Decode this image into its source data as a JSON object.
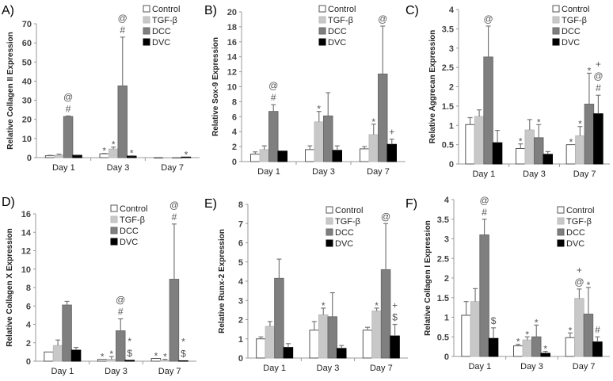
{
  "legend": [
    {
      "name": "Control",
      "color": "#ffffff"
    },
    {
      "name": "TGF-β",
      "color": "#c8c8c8"
    },
    {
      "name": "DCC",
      "color": "#7f7f7f"
    },
    {
      "name": "DVC",
      "color": "#000000"
    }
  ],
  "chart_data": [
    {
      "type": "bar",
      "panel": "A)",
      "ylabel": "Relative Collagen II Expression",
      "ylim": [
        0,
        70
      ],
      "yticks": [
        0,
        10,
        20,
        30,
        40,
        50,
        60,
        70
      ],
      "categories": [
        "Day 1",
        "Day 3",
        "Day 7"
      ],
      "series": [
        {
          "name": "Control",
          "values": [
            1,
            2,
            0
          ],
          "err_top": [
            1.2,
            2.2,
            0
          ],
          "annotations": [
            [],
            [
              "*"
            ],
            []
          ]
        },
        {
          "name": "TGF-β",
          "values": [
            1.3,
            4.5,
            0
          ],
          "err_top": [
            1.8,
            5.5,
            0
          ],
          "annotations": [
            [],
            [
              "*"
            ],
            []
          ]
        },
        {
          "name": "DCC",
          "values": [
            21.5,
            37.5,
            0
          ],
          "err_top": [
            21.8,
            63,
            0
          ],
          "annotations": [
            [
              "@",
              "#"
            ],
            [
              "@",
              "#"
            ],
            []
          ]
        },
        {
          "name": "DVC",
          "values": [
            1.2,
            0.8,
            0.3
          ],
          "err_top": [
            1.4,
            1.0,
            0.3
          ],
          "annotations": [
            [],
            [
              "*"
            ],
            [
              "*"
            ]
          ]
        }
      ]
    },
    {
      "type": "bar",
      "panel": "B)",
      "ylabel": "Relative Sox-9 Expression",
      "ylim": [
        0,
        20
      ],
      "yticks": [
        0,
        2,
        4,
        6,
        8,
        10,
        12,
        14,
        16,
        18,
        20
      ],
      "categories": [
        "Day 1",
        "Day 3",
        "Day 7"
      ],
      "series": [
        {
          "name": "Control",
          "values": [
            1.0,
            1.6,
            1.7
          ],
          "err_top": [
            1.3,
            2.1,
            2.0
          ],
          "annotations": [
            [],
            [],
            []
          ]
        },
        {
          "name": "TGF-β",
          "values": [
            1.6,
            5.3,
            3.6
          ],
          "err_top": [
            2.1,
            6.7,
            5.0
          ],
          "annotations": [
            [],
            [
              "*"
            ],
            [
              "*"
            ]
          ]
        },
        {
          "name": "DCC",
          "values": [
            6.7,
            6.1,
            11.7
          ],
          "err_top": [
            7.6,
            9.2,
            18.1
          ],
          "annotations": [
            [
              "@",
              "#"
            ],
            [],
            [
              "@"
            ]
          ]
        },
        {
          "name": "DVC",
          "values": [
            1.4,
            1.5,
            2.3
          ],
          "err_top": [
            1.4,
            2.1,
            3.0
          ],
          "annotations": [
            [],
            [],
            [
              "+"
            ]
          ]
        }
      ]
    },
    {
      "type": "bar",
      "panel": "C)",
      "ylabel": "Relative Aggrecan Expression",
      "ylim": [
        0,
        4
      ],
      "yticks": [
        0,
        0.5,
        1,
        1.5,
        2,
        2.5,
        3,
        3.5,
        4
      ],
      "categories": [
        "Day 1",
        "Day 3",
        "Day 7"
      ],
      "series": [
        {
          "name": "Control",
          "values": [
            1.02,
            0.4,
            0.5
          ],
          "err_top": [
            1.2,
            0.52,
            0.5
          ],
          "annotations": [
            [],
            [
              "*"
            ],
            [
              "*"
            ]
          ]
        },
        {
          "name": "TGF-β",
          "values": [
            1.23,
            0.88,
            0.73
          ],
          "err_top": [
            1.4,
            1.15,
            0.97
          ],
          "annotations": [
            [],
            [],
            [
              "*"
            ]
          ]
        },
        {
          "name": "DCC",
          "values": [
            2.77,
            0.68,
            1.55
          ],
          "err_top": [
            3.57,
            1.02,
            2.35
          ],
          "annotations": [
            [
              "@"
            ],
            [
              "*"
            ],
            [
              "*"
            ]
          ]
        },
        {
          "name": "DVC",
          "values": [
            0.55,
            0.25,
            1.3
          ],
          "err_top": [
            0.87,
            0.32,
            1.78
          ],
          "annotations": [
            [],
            [],
            [
              "+",
              "@",
              "#"
            ]
          ]
        }
      ]
    },
    {
      "type": "bar",
      "panel": "D)",
      "ylabel": "Relative Collagen X Expression",
      "ylim": [
        0,
        16
      ],
      "yticks": [
        0,
        2,
        4,
        6,
        8,
        10,
        12,
        14,
        16
      ],
      "categories": [
        "Day 1",
        "Day 3",
        "Day 7"
      ],
      "series": [
        {
          "name": "Control",
          "values": [
            1.0,
            0.2,
            0.3
          ],
          "err_top": [
            1.0,
            0.2,
            0.3
          ],
          "annotations": [
            [],
            [
              "*"
            ],
            [
              "*"
            ]
          ]
        },
        {
          "name": "TGF-β",
          "values": [
            1.7,
            0.2,
            0.1
          ],
          "err_top": [
            2.3,
            0.5,
            0.2
          ],
          "annotations": [
            [],
            [
              "*"
            ],
            [
              "*"
            ]
          ]
        },
        {
          "name": "DCC",
          "values": [
            6.1,
            3.3,
            8.9
          ],
          "err_top": [
            6.5,
            4.6,
            14.9
          ],
          "annotations": [
            [],
            [
              "@",
              "#"
            ],
            [
              "@",
              "#"
            ]
          ]
        },
        {
          "name": "DVC",
          "values": [
            1.2,
            0.1,
            0.05
          ],
          "err_top": [
            1.5,
            0.1,
            0.05
          ],
          "annotations": [
            [],
            [
              "*",
              "$"
            ],
            [
              "*",
              "$"
            ]
          ]
        }
      ]
    },
    {
      "type": "bar",
      "panel": "E)",
      "ylabel": "Relative Runx-2 Expression",
      "ylim": [
        0,
        8
      ],
      "yticks": [
        0,
        1,
        2,
        3,
        4,
        5,
        6,
        7,
        8
      ],
      "categories": [
        "Day 1",
        "Day 3",
        "Day 7"
      ],
      "series": [
        {
          "name": "Control",
          "values": [
            1.0,
            1.45,
            1.45
          ],
          "err_top": [
            1.1,
            1.9,
            1.6
          ],
          "annotations": [
            [],
            [],
            []
          ]
        },
        {
          "name": "TGF-β",
          "values": [
            1.65,
            2.25,
            2.45
          ],
          "err_top": [
            1.9,
            2.6,
            2.6
          ],
          "annotations": [
            [],
            [
              "*"
            ],
            [
              "*"
            ]
          ]
        },
        {
          "name": "DCC",
          "values": [
            4.15,
            2.15,
            4.6
          ],
          "err_top": [
            5.15,
            3.4,
            7.0
          ],
          "annotations": [
            [],
            [],
            [
              "@"
            ]
          ]
        },
        {
          "name": "DVC",
          "values": [
            0.55,
            0.5,
            1.15
          ],
          "err_top": [
            0.75,
            0.65,
            1.75
          ],
          "annotations": [
            [],
            [],
            [
              "+",
              "$"
            ]
          ]
        }
      ]
    },
    {
      "type": "bar",
      "panel": "F)",
      "ylabel": "Relative Collagen I Expression",
      "ylim": [
        0,
        4
      ],
      "yticks": [
        0,
        0.5,
        1,
        1.5,
        2,
        2.5,
        3,
        3.5,
        4
      ],
      "categories": [
        "Day 1",
        "Day 3",
        "Day 7"
      ],
      "series": [
        {
          "name": "Control",
          "values": [
            1.05,
            0.27,
            0.48
          ],
          "err_top": [
            1.4,
            0.31,
            0.6
          ],
          "annotations": [
            [],
            [
              "*"
            ],
            [
              "*"
            ]
          ]
        },
        {
          "name": "TGF-β",
          "values": [
            1.4,
            0.42,
            1.48
          ],
          "err_top": [
            1.73,
            0.5,
            1.72
          ],
          "annotations": [
            [],
            [
              "*"
            ],
            [
              "+",
              "@"
            ]
          ]
        },
        {
          "name": "DCC",
          "values": [
            3.1,
            0.5,
            1.08
          ],
          "err_top": [
            3.5,
            0.8,
            1.76
          ],
          "annotations": [
            [
              "@",
              "#"
            ],
            [
              "*"
            ],
            [
              "*"
            ]
          ]
        },
        {
          "name": "DVC",
          "values": [
            0.46,
            0.08,
            0.37
          ],
          "err_top": [
            0.73,
            0.13,
            0.5
          ],
          "annotations": [
            [
              "$"
            ],
            [
              "*"
            ],
            [
              "#"
            ]
          ]
        }
      ]
    }
  ]
}
